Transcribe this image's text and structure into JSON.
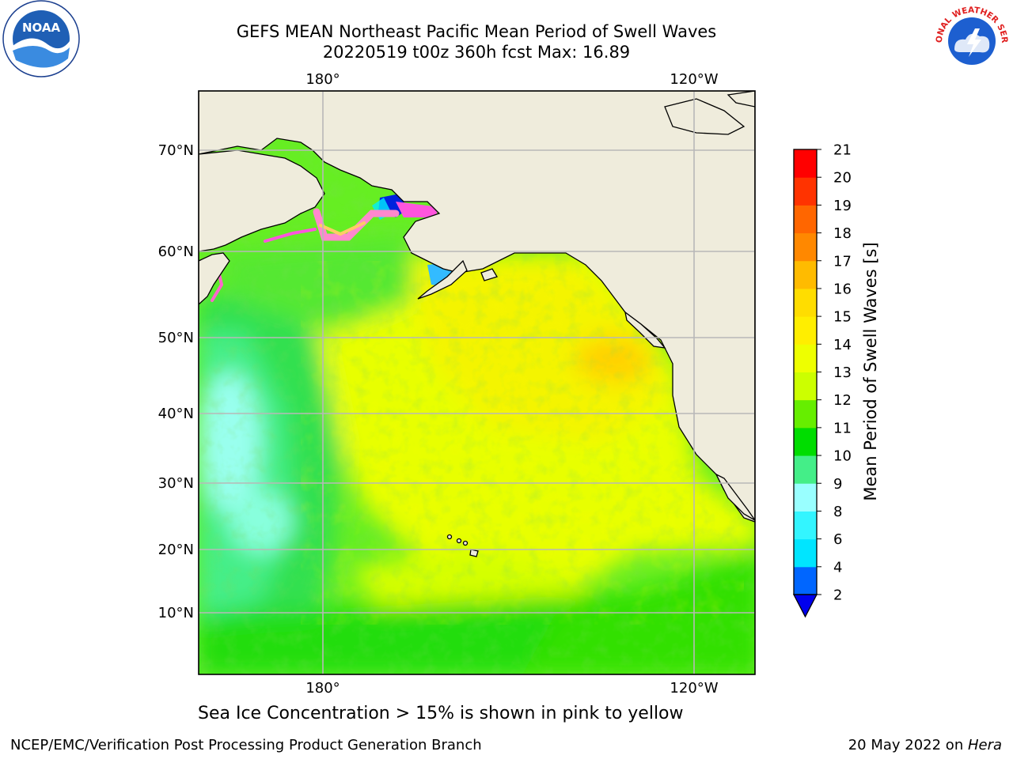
{
  "header": {
    "title_line1": "GEFS MEAN Northeast Pacific Mean Period of Swell Waves",
    "title_line2": "20220519 t00z 360h fcst   Max: 16.89"
  },
  "logos": {
    "noaa_text": "NOAA",
    "nws_ring_text": "NATIONAL WEATHER SERVICE"
  },
  "map": {
    "lon_labels_top": [
      "180°",
      "120°W"
    ],
    "lon_labels_bottom": [
      "180°",
      "120°W"
    ],
    "lat_labels": [
      "70°N",
      "60°N",
      "50°N",
      "40°N",
      "30°N",
      "20°N",
      "10°N"
    ],
    "land_color": "#efecdc",
    "grid_color": "#b8b8b8"
  },
  "colorbar": {
    "label": "Mean Period of Swell Waves [s]",
    "tick_labels": [
      "21",
      "20",
      "19",
      "18",
      "17",
      "16",
      "15",
      "14",
      "13",
      "12",
      "11",
      "10",
      "9",
      "8",
      "6",
      "4",
      "2"
    ],
    "levels": [
      2,
      4,
      6,
      8,
      9,
      10,
      11,
      12,
      13,
      14,
      15,
      16,
      17,
      18,
      19,
      20,
      21
    ],
    "colors": [
      "#0066ff",
      "#00e5ff",
      "#33f5ff",
      "#99ffff",
      "#44ee88",
      "#00dd00",
      "#66ee00",
      "#ccff00",
      "#eeff00",
      "#ffee00",
      "#ffdd00",
      "#ffbb00",
      "#ff8800",
      "#ff6600",
      "#ff3300",
      "#ff0000"
    ],
    "under_color": "#0000ee"
  },
  "footer": {
    "sea_ice_note": "Sea Ice Concentration > 15% is shown in pink to yellow",
    "producer": "NCEP/EMC/Verification Post Processing Product Generation Branch",
    "date_text": "20 May 2022 on ",
    "machine": "Hera"
  }
}
